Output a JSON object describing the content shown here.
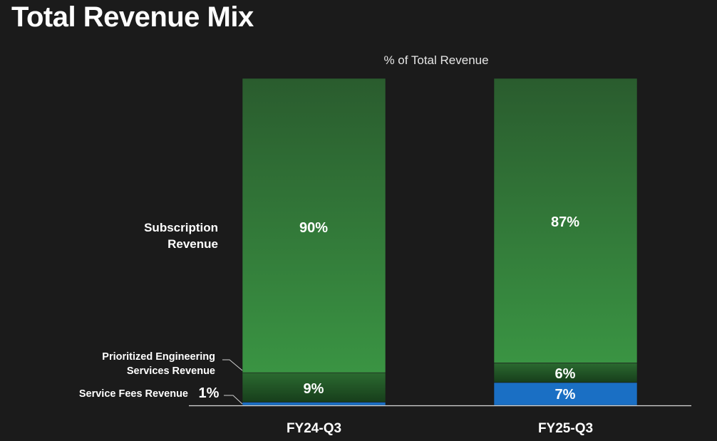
{
  "title": "Total Revenue Mix",
  "chart_data": {
    "type": "bar",
    "stacked": true,
    "percent": true,
    "title": "Total Revenue Mix",
    "subtitle": "% of Total Revenue",
    "xlabel": "",
    "ylabel": "",
    "ylim": [
      0,
      100
    ],
    "grid": false,
    "legend": "left-side labels",
    "categories": [
      "FY24-Q3",
      "FY25-Q3"
    ],
    "series": [
      {
        "name": "Service Fees Revenue",
        "values": [
          1,
          7
        ],
        "labels": [
          "1%",
          "7%"
        ],
        "color": "#1a6fc4"
      },
      {
        "name": "Prioritized Engineering Services Revenue",
        "values": [
          9,
          6
        ],
        "labels": [
          "9%",
          "6%"
        ],
        "color": "#245a28"
      },
      {
        "name": "Subscription Revenue",
        "values": [
          90,
          87
        ],
        "labels": [
          "90%",
          "87%"
        ],
        "color": "#348a3d"
      }
    ],
    "series_label_lines": {
      "Subscription Revenue": [
        "Subscription",
        "Revenue"
      ],
      "Prioritized Engineering Services Revenue": [
        "Prioritized Engineering",
        "Services Revenue"
      ],
      "Service Fees Revenue": [
        "Service Fees Revenue"
      ]
    }
  }
}
